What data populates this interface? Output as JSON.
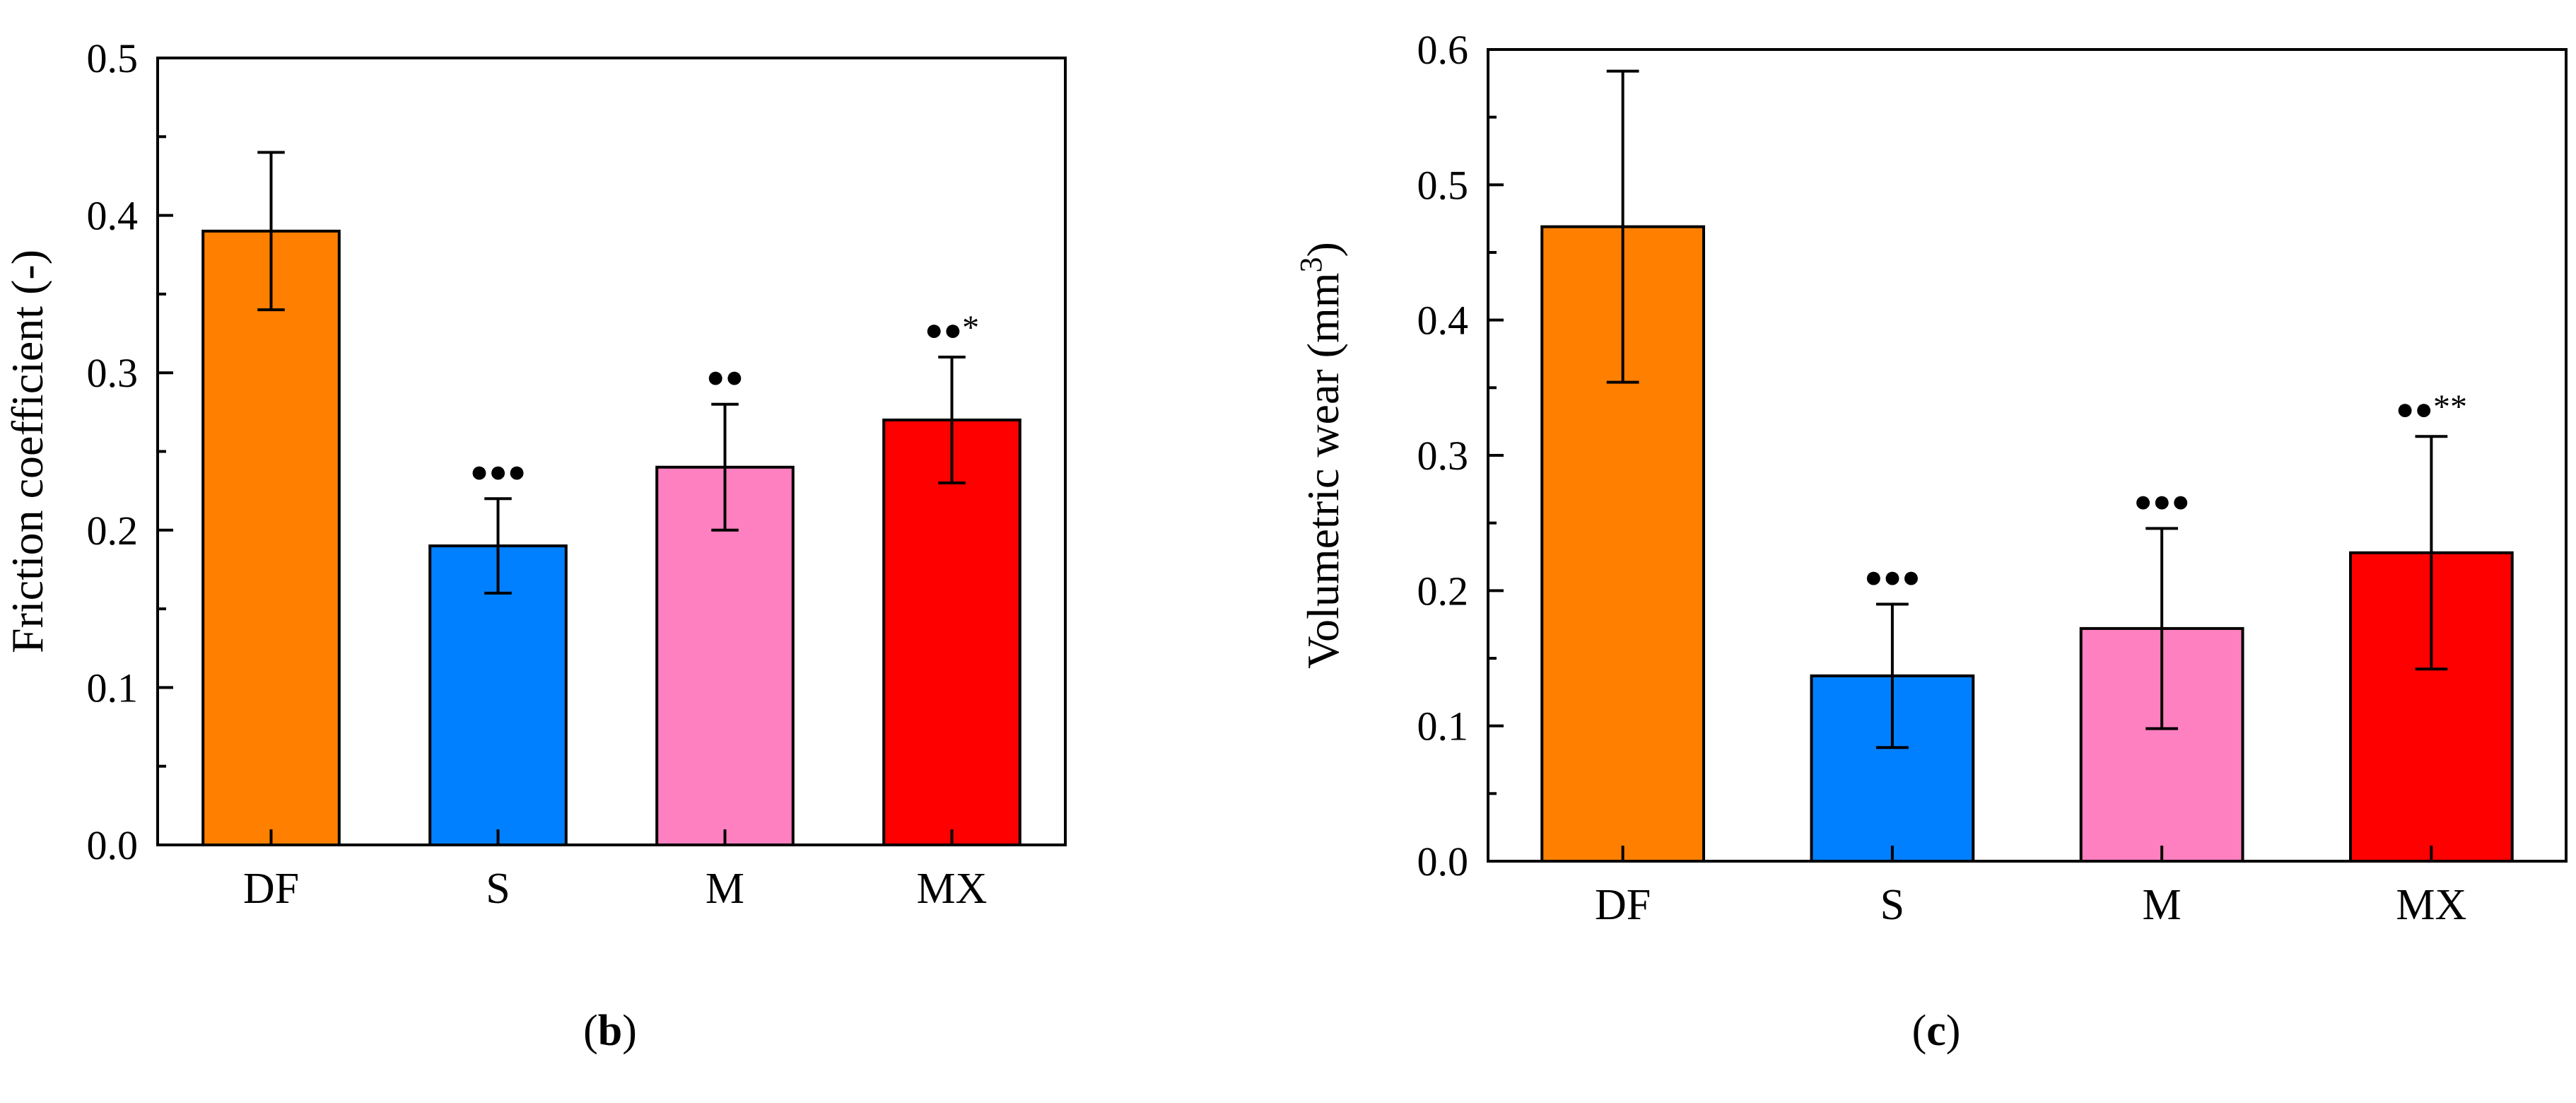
{
  "chart_data": [
    {
      "type": "bar",
      "panel_label": "b",
      "categories": [
        "DF",
        "S",
        "M",
        "MX"
      ],
      "values": [
        0.39,
        0.19,
        0.24,
        0.27
      ],
      "errors": [
        0.05,
        0.03,
        0.04,
        0.04
      ],
      "colors": [
        "#FF8000",
        "#0080FF",
        "#FF80C0",
        "#FF0000"
      ],
      "ylabel": "Friction coefficient (-)",
      "ylabel_sup": "",
      "ylabel_suffix": "",
      "ylim": [
        0,
        0.5
      ],
      "yticks": [
        "0.0",
        "0.1",
        "0.2",
        "0.3",
        "0.4",
        "0.5"
      ],
      "markers": [
        "",
        "●●●",
        "●●",
        "●●"
      ],
      "stars": [
        "",
        "",
        "",
        "*"
      ]
    },
    {
      "type": "bar",
      "panel_label": "c",
      "categories": [
        "DF",
        "S",
        "M",
        "MX"
      ],
      "values": [
        0.469,
        0.137,
        0.172,
        0.228
      ],
      "errors": [
        0.115,
        0.053,
        0.074,
        0.086
      ],
      "colors": [
        "#FF8000",
        "#0080FF",
        "#FF80C0",
        "#FF0000"
      ],
      "ylabel": "Volumetric wear (mm",
      "ylabel_sup": "3",
      "ylabel_suffix": ")",
      "ylim": [
        0,
        0.6
      ],
      "yticks": [
        "0.0",
        "0.1",
        "0.2",
        "0.3",
        "0.4",
        "0.5",
        "0.6"
      ],
      "markers": [
        "",
        "●●●",
        "●●●",
        "●●"
      ],
      "stars": [
        "",
        "",
        "",
        "**"
      ]
    }
  ],
  "captions": [
    {
      "open": "(",
      "letter": "b",
      "close": ")"
    },
    {
      "open": "(",
      "letter": "c",
      "close": ")"
    }
  ]
}
